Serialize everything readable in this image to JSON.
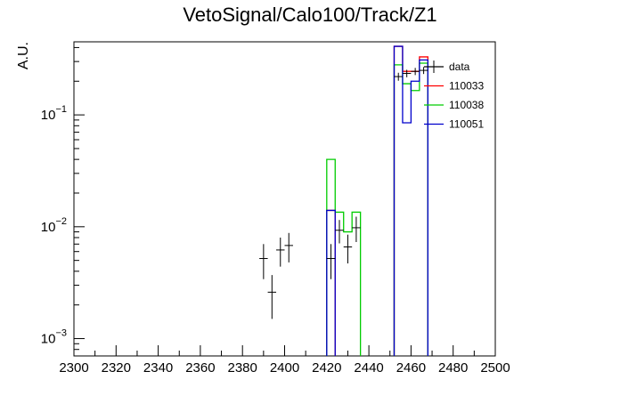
{
  "chart_data": {
    "type": "histogram",
    "title": "VetoSignal/Calo100/Track/Z1",
    "ylabel": "A.U.",
    "xlabel": "",
    "xlim": [
      2300,
      2500
    ],
    "ylim": [
      0.0007,
      0.45
    ],
    "yscale": "log",
    "x_tick_labels": [
      "2300",
      "2320",
      "2340",
      "2360",
      "2380",
      "2400",
      "2420",
      "2440",
      "2460",
      "2480",
      "2500"
    ],
    "y_tick_labels": [
      {
        "base": "10",
        "exp": "−3",
        "value": 0.001
      },
      {
        "base": "10",
        "exp": "−2",
        "value": 0.01
      },
      {
        "base": "10",
        "exp": "−1",
        "value": 0.1
      }
    ],
    "legend_position": "top-right",
    "bin_width": 4,
    "data_series": {
      "name": "data",
      "color": "#000000",
      "points": [
        {
          "x": 2390,
          "y": 0.0052,
          "err": 0.0018
        },
        {
          "x": 2394,
          "y": 0.0026,
          "err": 0.0011
        },
        {
          "x": 2398,
          "y": 0.0062,
          "err": 0.0018
        },
        {
          "x": 2402,
          "y": 0.0068,
          "err": 0.002
        },
        {
          "x": 2422,
          "y": 0.0052,
          "err": 0.0018
        },
        {
          "x": 2426,
          "y": 0.0093,
          "err": 0.0022
        },
        {
          "x": 2430,
          "y": 0.0066,
          "err": 0.0019
        },
        {
          "x": 2434,
          "y": 0.0098,
          "err": 0.0025
        },
        {
          "x": 2454,
          "y": 0.22,
          "err": 0.018
        },
        {
          "x": 2458,
          "y": 0.235,
          "err": 0.018
        },
        {
          "x": 2462,
          "y": 0.245,
          "err": 0.018
        },
        {
          "x": 2466,
          "y": 0.25,
          "err": 0.018
        }
      ]
    },
    "mc_series": [
      {
        "name": "110033",
        "color": "#ff0000",
        "bins": [
          {
            "x0": 2420,
            "x1": 2424,
            "y": 0.014
          },
          {
            "x0": 2452,
            "x1": 2456,
            "y": 0.41
          },
          {
            "x0": 2456,
            "x1": 2460,
            "y": 0.245
          },
          {
            "x0": 2460,
            "x1": 2464,
            "y": 0.245
          },
          {
            "x0": 2464,
            "x1": 2468,
            "y": 0.33
          }
        ]
      },
      {
        "name": "110038",
        "color": "#00cc00",
        "bins": [
          {
            "x0": 2420,
            "x1": 2424,
            "y": 0.04
          },
          {
            "x0": 2424,
            "x1": 2428,
            "y": 0.0135
          },
          {
            "x0": 2428,
            "x1": 2432,
            "y": 0.009
          },
          {
            "x0": 2432,
            "x1": 2436,
            "y": 0.0135
          },
          {
            "x0": 2452,
            "x1": 2456,
            "y": 0.28
          },
          {
            "x0": 2456,
            "x1": 2460,
            "y": 0.19
          },
          {
            "x0": 2460,
            "x1": 2464,
            "y": 0.165
          },
          {
            "x0": 2464,
            "x1": 2468,
            "y": 0.29
          }
        ]
      },
      {
        "name": "110051",
        "color": "#0000cc",
        "bins": [
          {
            "x0": 2420,
            "x1": 2424,
            "y": 0.014
          },
          {
            "x0": 2452,
            "x1": 2456,
            "y": 0.41
          },
          {
            "x0": 2456,
            "x1": 2460,
            "y": 0.085
          },
          {
            "x0": 2460,
            "x1": 2464,
            "y": 0.2
          },
          {
            "x0": 2464,
            "x1": 2468,
            "y": 0.31
          }
        ]
      }
    ]
  }
}
